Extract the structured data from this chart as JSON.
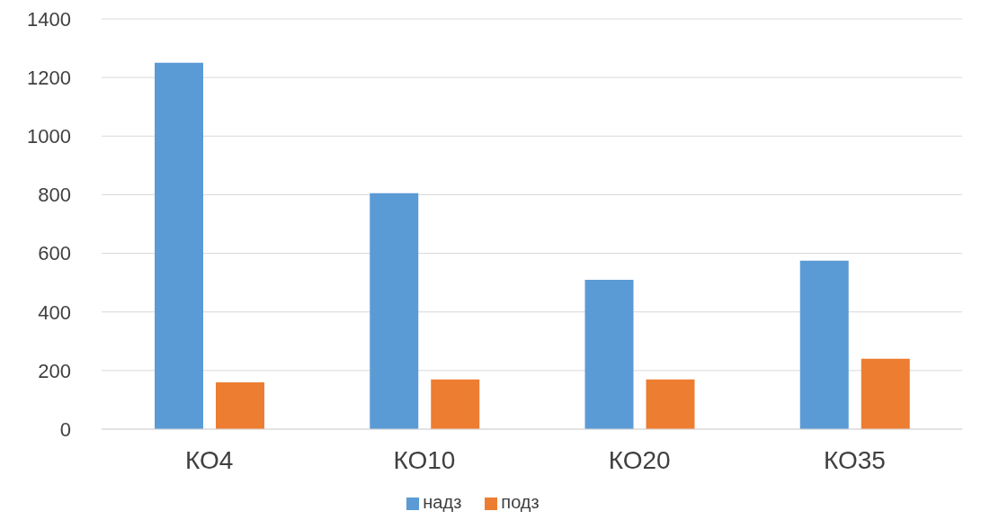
{
  "chart_data": {
    "type": "bar",
    "categories": [
      "КО4",
      "КО10",
      "КО20",
      "КО35"
    ],
    "series": [
      {
        "name": "надз",
        "color": "#5b9bd5",
        "values": [
          1250,
          805,
          510,
          575
        ]
      },
      {
        "name": "подз",
        "color": "#ed7d31",
        "values": [
          160,
          170,
          170,
          240
        ]
      }
    ],
    "ylim": [
      0,
      1400
    ],
    "yticks": [
      0,
      200,
      400,
      600,
      800,
      1000,
      1200,
      1400
    ],
    "grid": "y",
    "legend": "bottom"
  }
}
